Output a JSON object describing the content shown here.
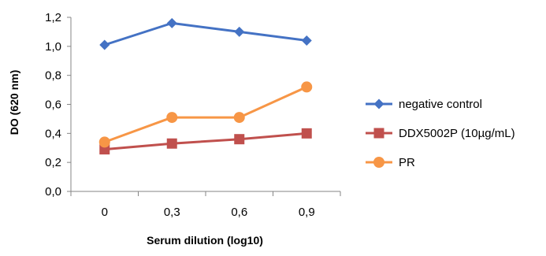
{
  "chart_data": {
    "type": "line",
    "categories": [
      "0",
      "0,3",
      "0,6",
      "0,9"
    ],
    "xlabel": "Serum dilution (log10)",
    "ylabel": "DO (620 nm)",
    "ylim": [
      0,
      1.2
    ],
    "yticks": [
      "0,0",
      "0,2",
      "0,4",
      "0,6",
      "0,8",
      "1,0",
      "1,2"
    ],
    "grid": false,
    "legend_position": "right",
    "series": [
      {
        "name": "negative control",
        "values": [
          1.01,
          1.16,
          1.1,
          1.04
        ],
        "color": "#4472C4",
        "marker": "diamond"
      },
      {
        "name": "DDX5002P (10µg/mL)",
        "values": [
          0.29,
          0.33,
          0.36,
          0.4
        ],
        "color": "#C0504D",
        "marker": "square"
      },
      {
        "name": "PR",
        "values": [
          0.34,
          0.51,
          0.51,
          0.72
        ],
        "color": "#F79646",
        "marker": "circle"
      }
    ]
  }
}
